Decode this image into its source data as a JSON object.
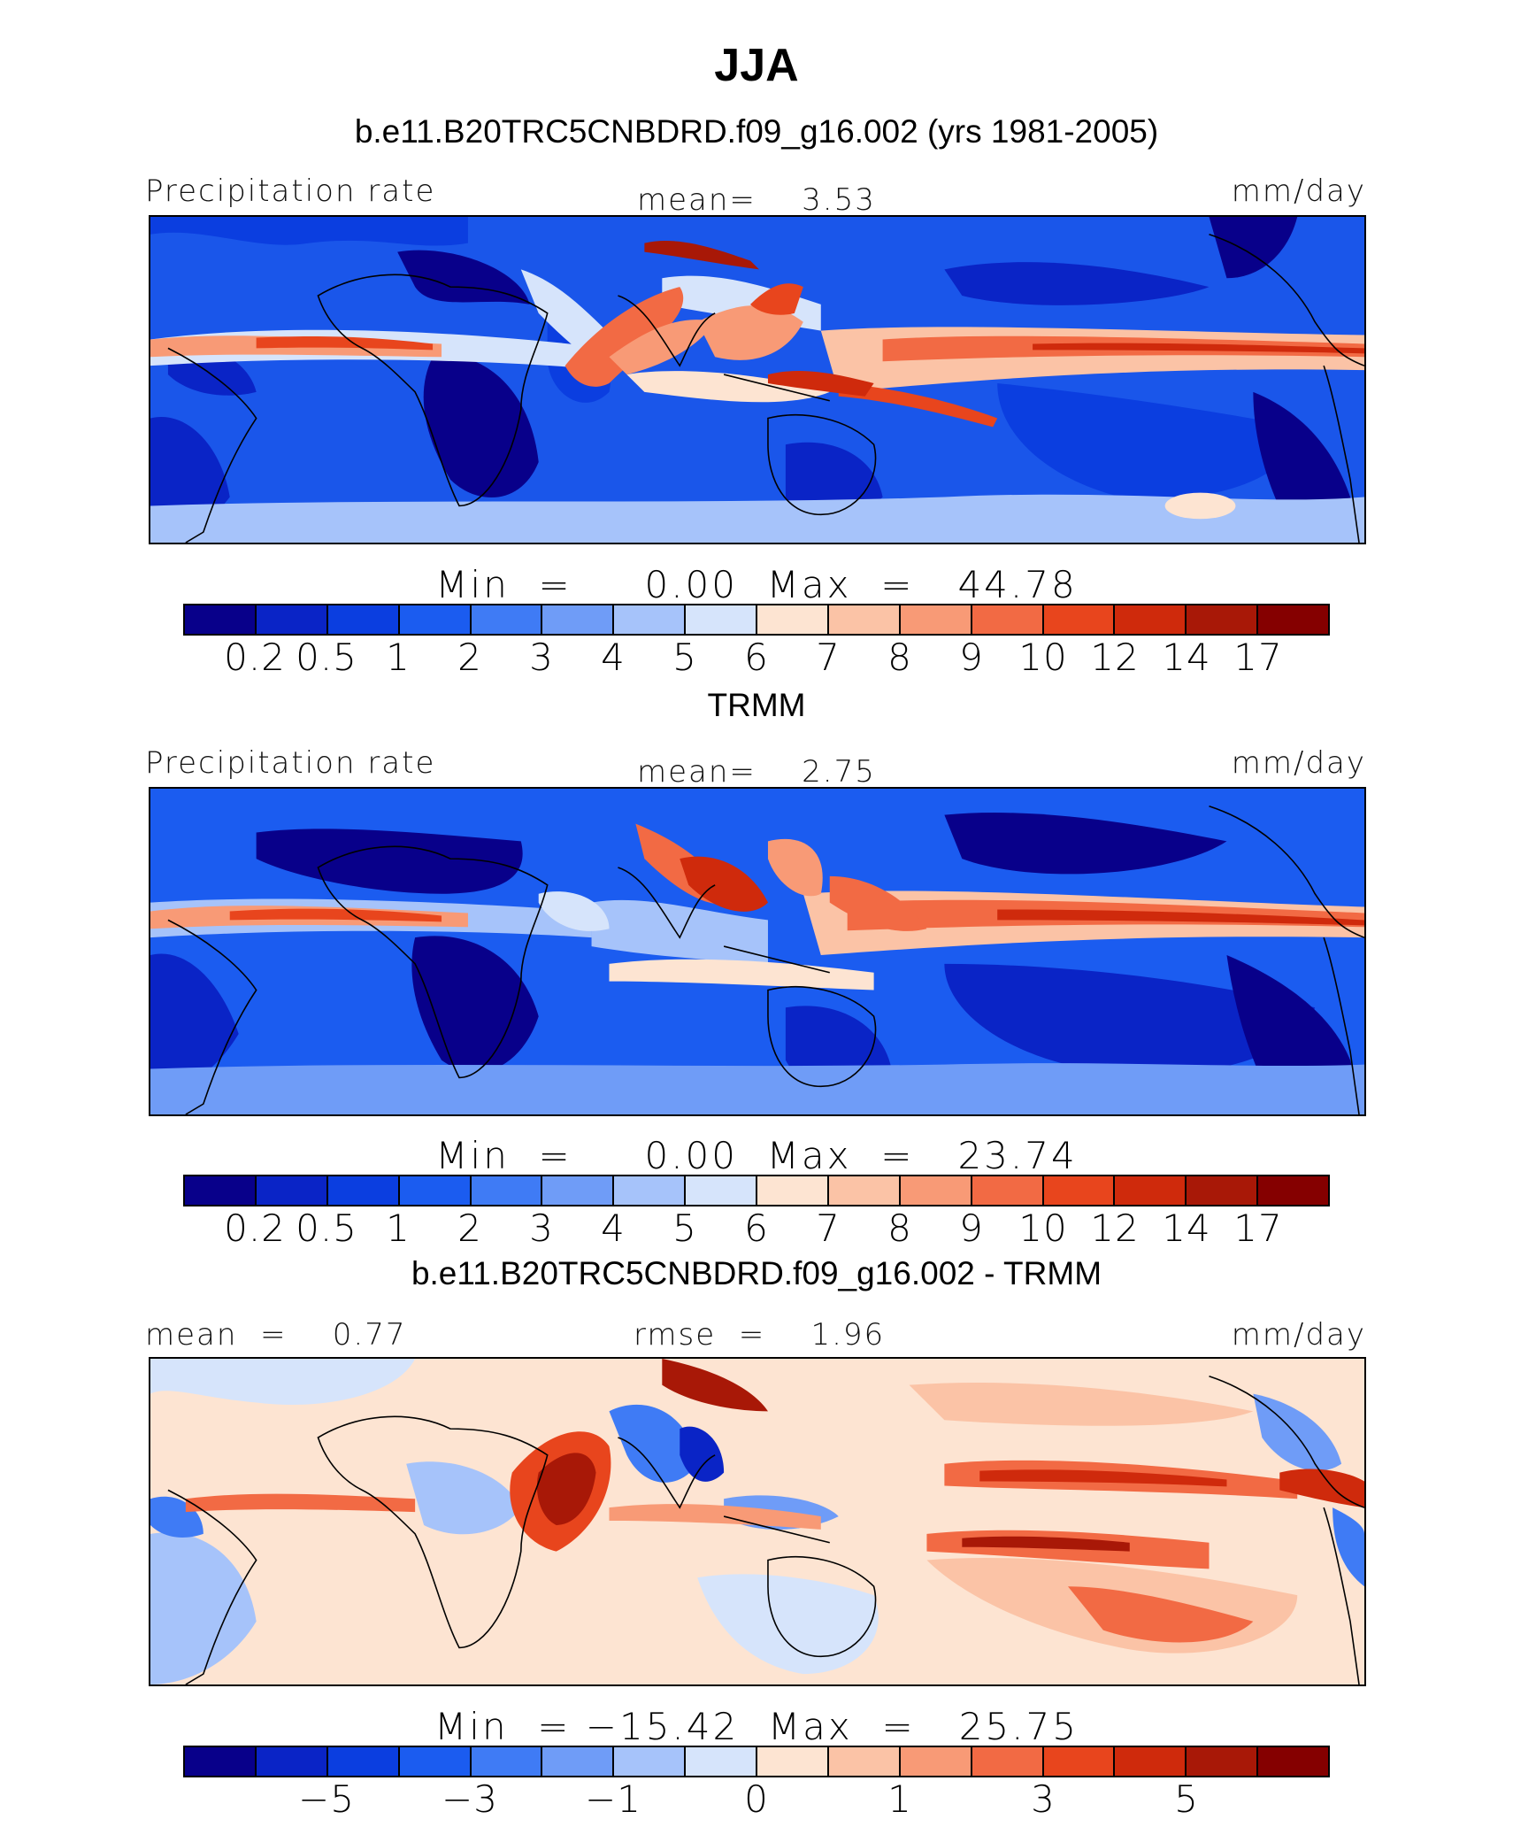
{
  "main_title": "JJA",
  "panels": [
    {
      "title": "b.e11.B20TRC5CNBDRD.f09_g16.002 (yrs 1981-2005)",
      "left_label": "Precipitation rate",
      "center_label": "mean=    3.53",
      "right_label": "mm/day",
      "min_max": "Min  =     0.00  Max  =   44.78",
      "colorbar_ticks": [
        "0.2",
        "0.5",
        "1",
        "2",
        "3",
        "4",
        "5",
        "6",
        "7",
        "8",
        "9",
        "10",
        "12",
        "14",
        "17"
      ],
      "map_type": "model"
    },
    {
      "title": "TRMM",
      "left_label": "Precipitation rate",
      "center_label": "mean=    2.75",
      "right_label": "mm/day",
      "min_max": "Min  =     0.00  Max  =   23.74",
      "colorbar_ticks": [
        "0.2",
        "0.5",
        "1",
        "2",
        "3",
        "4",
        "5",
        "6",
        "7",
        "8",
        "9",
        "10",
        "12",
        "14",
        "17"
      ],
      "map_type": "obs"
    },
    {
      "title": "b.e11.B20TRC5CNBDRD.f09_g16.002 - TRMM",
      "left_label": "mean  =    0.77",
      "center_label": "rmse  =    1.96",
      "right_label": "mm/day",
      "min_max": "Min  = −15.42  Max  =   25.75",
      "colorbar_ticks": [
        "−5",
        "−3",
        "−1",
        "0",
        "1",
        "3",
        "5"
      ],
      "map_type": "diff"
    }
  ],
  "colorbar_colors": [
    "#08008a",
    "#0a24c6",
    "#0b3ee0",
    "#1b5cf0",
    "#3f7bf5",
    "#6f9cf7",
    "#a6c3fa",
    "#d6e4fb",
    "#fde4d2",
    "#fbc3a6",
    "#f89a76",
    "#f26a44",
    "#e8451d",
    "#cf2a0c",
    "#a81807",
    "#850000"
  ]
}
